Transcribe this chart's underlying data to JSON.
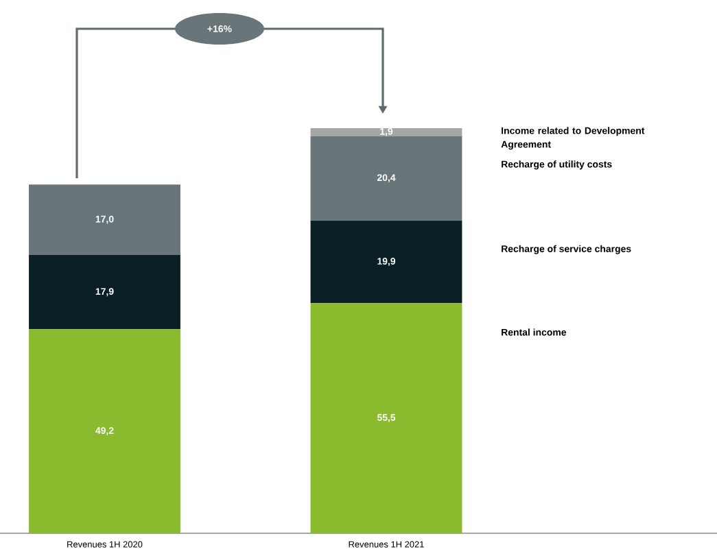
{
  "chart_data": {
    "type": "bar",
    "stacked": true,
    "categories": [
      "Revenues 1H 2020",
      "Revenues 1H 2021"
    ],
    "series": [
      {
        "name": "Rental income",
        "color": "#8aba2e",
        "values": [
          49.2,
          55.5
        ],
        "value_labels": [
          "49,2",
          "55,5"
        ]
      },
      {
        "name": "Recharge of service charges",
        "color": "#0a2026",
        "values": [
          17.9,
          19.9
        ],
        "value_labels": [
          "17,9",
          "19,9"
        ]
      },
      {
        "name": "Recharge of utility costs",
        "color": "#68767a",
        "values": [
          17.0,
          20.4
        ],
        "value_labels": [
          "17,0",
          "20,4"
        ]
      },
      {
        "name": "Income related to Development Agreement",
        "color": "#a6a6a6",
        "values": [
          null,
          1.9
        ],
        "value_labels": [
          null,
          "1,9"
        ]
      }
    ],
    "annotations": [
      "+16%"
    ]
  }
}
